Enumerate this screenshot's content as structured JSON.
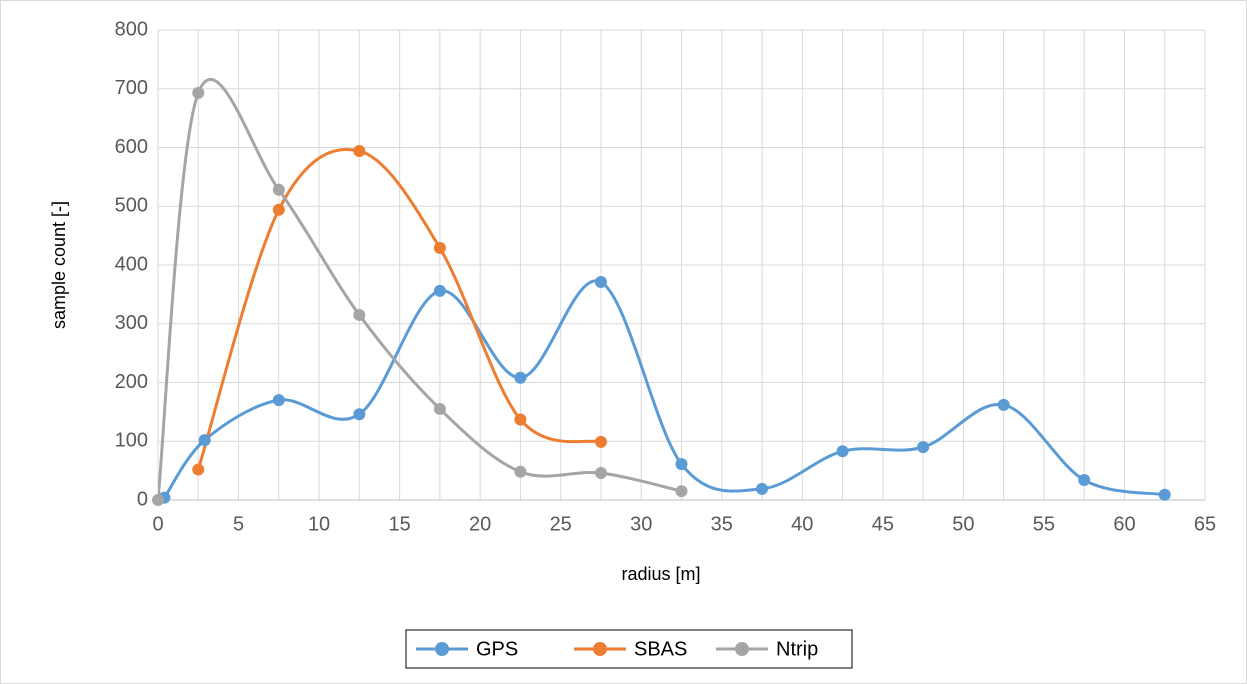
{
  "chart_data": {
    "type": "scatter_smooth",
    "x_label": "radius [m]",
    "y_label": "sample count [-]",
    "xlim": [
      0,
      65
    ],
    "xticks": [
      0,
      5,
      10,
      15,
      20,
      25,
      30,
      35,
      40,
      45,
      50,
      55,
      60,
      65
    ],
    "ylim": [
      0,
      800
    ],
    "yticks": [
      0,
      100,
      200,
      300,
      400,
      500,
      600,
      700,
      800
    ],
    "grid": true,
    "legend": "bottom",
    "series": [
      {
        "name": "GPS",
        "color": "#5b9bd5",
        "x": [
          0.4,
          2.9,
          7.5,
          12.5,
          17.5,
          22.5,
          27.5,
          32.5,
          37.5,
          42.5,
          47.5,
          52.5,
          57.5,
          62.5
        ],
        "values": [
          4,
          102,
          170,
          146,
          356,
          208,
          371,
          61,
          19,
          83,
          90,
          162,
          34,
          9
        ]
      },
      {
        "name": "SBAS",
        "color": "#ed7d31",
        "x": [
          2.5,
          7.5,
          12.5,
          17.5,
          22.5,
          27.5
        ],
        "values": [
          52,
          494,
          594,
          429,
          137,
          99
        ]
      },
      {
        "name": "Ntrip",
        "color": "#a5a5a5",
        "x": [
          0,
          2.5,
          7.5,
          12.5,
          17.5,
          22.5,
          27.5,
          32.5
        ],
        "values": [
          0,
          693,
          528,
          315,
          155,
          48,
          46,
          15
        ]
      }
    ]
  }
}
